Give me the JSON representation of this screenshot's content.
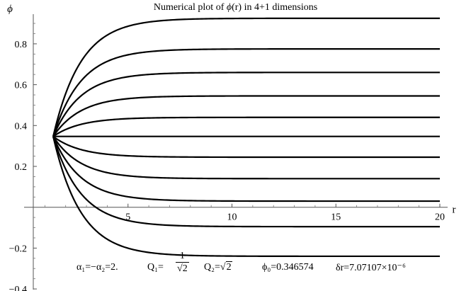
{
  "chart_data": {
    "type": "line",
    "title_prefix": "Numerical plot of ",
    "title_phi": "ϕ",
    "title_suffix": "(r) in 4+1 dimensions",
    "xlabel": "r",
    "ylabel": "ϕ",
    "xlim": [
      0,
      20
    ],
    "ylim": [
      -0.4,
      0.95
    ],
    "x_ticks": [
      5,
      10,
      15,
      20
    ],
    "y_ticks": [
      -0.4,
      -0.2,
      0.2,
      0.4,
      0.6,
      0.8
    ],
    "y_tick_labels": [
      "−0.4",
      "−0.2",
      "0.2",
      "0.4",
      "0.6",
      "0.8"
    ],
    "x_start": 1.4,
    "phi0": 0.346574,
    "series": [
      {
        "final": 0.925
      },
      {
        "final": 0.775
      },
      {
        "final": 0.66
      },
      {
        "final": 0.545
      },
      {
        "final": 0.44
      },
      {
        "final": 0.346574
      },
      {
        "final": 0.245
      },
      {
        "final": 0.14
      },
      {
        "final": 0.03
      },
      {
        "final": -0.095
      },
      {
        "final": -0.24
      }
    ],
    "annotation": {
      "alpha": "α₁=−α₂=2.",
      "q1_label": "Q₁=",
      "q1_num": "1",
      "q1_den": "2",
      "q2_label": "Q₂=",
      "q2_value": "2",
      "phi0_label": "ϕ₀=0.346574",
      "dr_label": "δr=7.07107×10⁻⁶"
    }
  }
}
